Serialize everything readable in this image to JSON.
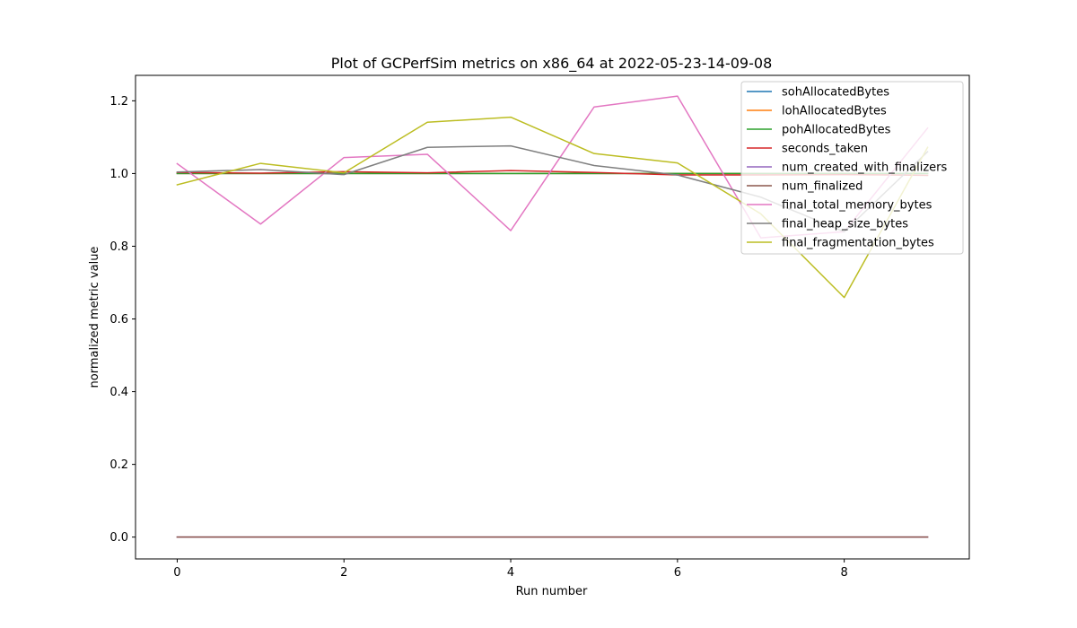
{
  "chart_data": {
    "type": "line",
    "title": "Plot of GCPerfSim metrics on x86_64 at 2022-05-23-14-09-08",
    "xlabel": "Run number",
    "ylabel": "normalized metric value",
    "xlim": [
      -0.5,
      9.5
    ],
    "ylim": [
      -0.06,
      1.27
    ],
    "xticks": [
      0,
      2,
      4,
      6,
      8
    ],
    "yticks": [
      0.0,
      0.2,
      0.4,
      0.6,
      0.8,
      1.0,
      1.2
    ],
    "ytick_labels": [
      "0.0",
      "0.2",
      "0.4",
      "0.6",
      "0.8",
      "1.0",
      "1.2"
    ],
    "grid": false,
    "legend_position": "top-right",
    "x": [
      0,
      1,
      2,
      3,
      4,
      5,
      6,
      7,
      8,
      9
    ],
    "series": [
      {
        "name": "sohAllocatedBytes",
        "color": "#1f77b4",
        "values": [
          1.0,
          1.0,
          1.0,
          1.0,
          1.0,
          1.0,
          1.0,
          1.0,
          1.0,
          1.0
        ]
      },
      {
        "name": "lohAllocatedBytes",
        "color": "#ff7f0e",
        "values": [
          1.0,
          1.0,
          1.0,
          1.0,
          1.0,
          1.0,
          1.0,
          1.0,
          1.0,
          1.0
        ]
      },
      {
        "name": "pohAllocatedBytes",
        "color": "#2ca02c",
        "values": [
          1.0,
          1.0,
          1.0,
          1.0,
          1.0,
          1.0,
          1.0,
          1.0,
          1.0,
          1.0
        ]
      },
      {
        "name": "seconds_taken",
        "color": "#d62728",
        "values": [
          1.003,
          1.001,
          1.005,
          1.002,
          1.008,
          1.003,
          0.996,
          0.996,
          0.997,
          0.995
        ]
      },
      {
        "name": "num_created_with_finalizers",
        "color": "#9467bd",
        "values": [
          0.0,
          0.0,
          0.0,
          0.0,
          0.0,
          0.0,
          0.0,
          0.0,
          0.0,
          0.0
        ]
      },
      {
        "name": "num_finalized",
        "color": "#8c564b",
        "values": [
          0.0,
          0.0,
          0.0,
          0.0,
          0.0,
          0.0,
          0.0,
          0.0,
          0.0,
          0.0
        ]
      },
      {
        "name": "final_total_memory_bytes",
        "color": "#e377c2",
        "values": [
          1.027,
          0.861,
          1.044,
          1.053,
          0.843,
          1.183,
          1.213,
          0.823,
          0.84,
          1.125
        ]
      },
      {
        "name": "final_heap_size_bytes",
        "color": "#7f7f7f",
        "values": [
          1.004,
          1.011,
          0.997,
          1.072,
          1.076,
          1.022,
          0.996,
          0.935,
          0.84,
          1.06
        ]
      },
      {
        "name": "final_fragmentation_bytes",
        "color": "#bcbd22",
        "values": [
          0.969,
          1.028,
          1.002,
          1.141,
          1.155,
          1.055,
          1.029,
          0.889,
          0.659,
          1.072
        ]
      }
    ]
  }
}
